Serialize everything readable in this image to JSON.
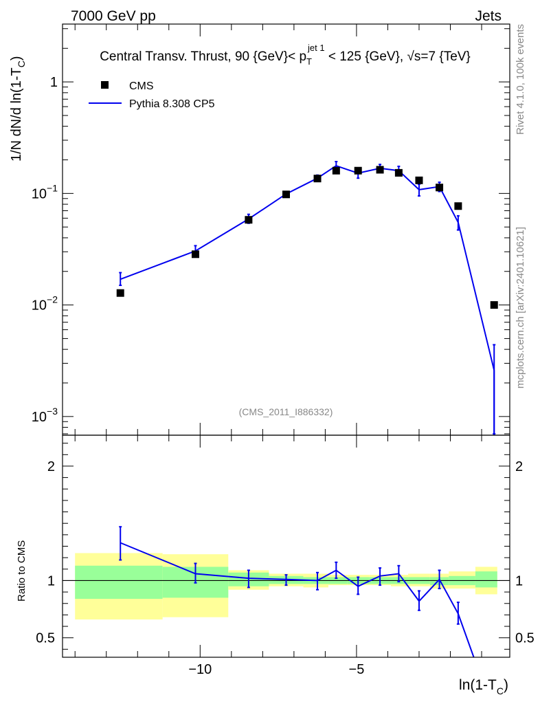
{
  "header": {
    "left": "7000 GeV pp",
    "right": "Jets",
    "side_top": "Rivet 4.1.0,  100k events",
    "side_bottom": "mcplots.cern.ch [arXiv:2401.10621]",
    "watermark": "(CMS_2011_I886332)"
  },
  "colors": {
    "data": "#000000",
    "mc": "#0000ee",
    "band_inner": "#99ff99",
    "band_outer": "#ffff99"
  },
  "chart_data": [
    {
      "type": "scatter",
      "title": "Central Transv. Thrust, 90 {GeV}< p_T^{jet 1} < 125 {GeV}, √s=7 {TeV}",
      "title_parts": {
        "pre": "Central Transv. Thrust, 90 {GeV}< p",
        "sub": "T",
        "sup": "jet 1",
        "mid": " < 125 {GeV}, ",
        "sqrt": "√s",
        "post": "=7 {TeV}"
      },
      "ylabel": "1/N    dN/d ln(1-T_C)",
      "ylabel_parts": {
        "pre": "1/N    dN/d ln(1-T",
        "sub": "C",
        "post": ")"
      },
      "xlabel": "",
      "yscale": "log",
      "xlim": [
        -14.4,
        -0.1
      ],
      "ylim": [
        0.00068,
        3.3
      ],
      "yticks": [
        0.001,
        0.01,
        0.1,
        1
      ],
      "ytick_labels": [
        [
          "10",
          "−3"
        ],
        [
          "10",
          "−2"
        ],
        [
          "10",
          "−1"
        ],
        [
          "1",
          ""
        ]
      ],
      "legend": {
        "location": "top-left",
        "entries": [
          "CMS",
          "Pythia 8.308 CP5"
        ]
      },
      "series": [
        {
          "name": "CMS",
          "kind": "markers",
          "x": [
            -12.55,
            -10.15,
            -8.45,
            -7.25,
            -6.25,
            -5.65,
            -4.95,
            -4.25,
            -3.65,
            -3.0,
            -2.35,
            -1.75,
            -0.6
          ],
          "y": [
            0.0128,
            0.0285,
            0.058,
            0.098,
            0.136,
            0.16,
            0.16,
            0.163,
            0.153,
            0.131,
            0.113,
            0.077,
            0.01
          ]
        },
        {
          "name": "Pythia 8.308 CP5",
          "kind": "line",
          "x": [
            -12.55,
            -10.15,
            -8.45,
            -7.25,
            -6.25,
            -5.65,
            -4.95,
            -4.25,
            -3.65,
            -3.0,
            -2.35,
            -1.75,
            -0.6
          ],
          "y": [
            0.017,
            0.0305,
            0.059,
            0.099,
            0.137,
            0.177,
            0.152,
            0.168,
            0.16,
            0.108,
            0.115,
            0.055,
            0.0026
          ],
          "yerr_low": [
            0.015,
            0.027,
            0.054,
            0.094,
            0.129,
            0.162,
            0.137,
            0.155,
            0.146,
            0.095,
            0.104,
            0.047,
            0.0007
          ],
          "yerr_high": [
            0.0195,
            0.034,
            0.065,
            0.104,
            0.146,
            0.193,
            0.168,
            0.182,
            0.175,
            0.121,
            0.126,
            0.063,
            0.0044
          ]
        }
      ]
    },
    {
      "type": "line",
      "title": "",
      "ylabel": "Ratio to CMS",
      "xlabel": "ln(1-T_C)",
      "xlabel_parts": {
        "pre": "ln(1-T",
        "sub": "C",
        "post": ")"
      },
      "xlim": [
        -14.4,
        -0.1
      ],
      "ylim": [
        0.33,
        2.27
      ],
      "xticks": [
        -10,
        -5
      ],
      "xtick_labels": [
        "−10",
        "−5"
      ],
      "yticks": [
        0.5,
        1,
        2
      ],
      "ytick_labels": [
        "0.5",
        "1",
        "2"
      ],
      "reference_line": 1,
      "bands": [
        {
          "x0": -14.0,
          "x1": -11.2,
          "inner": [
            0.84,
            1.13
          ],
          "outer": [
            0.66,
            1.24
          ]
        },
        {
          "x0": -11.2,
          "x1": -9.1,
          "inner": [
            0.85,
            1.12
          ],
          "outer": [
            0.68,
            1.23
          ]
        },
        {
          "x0": -9.1,
          "x1": -7.8,
          "inner": [
            0.95,
            1.07
          ],
          "outer": [
            0.92,
            1.09
          ]
        },
        {
          "x0": -7.8,
          "x1": -6.7,
          "inner": [
            0.97,
            1.04
          ],
          "outer": [
            0.95,
            1.06
          ]
        },
        {
          "x0": -6.7,
          "x1": -5.9,
          "inner": [
            0.97,
            1.03
          ],
          "outer": [
            0.94,
            1.06
          ]
        },
        {
          "x0": -5.9,
          "x1": -5.3,
          "inner": [
            0.97,
            1.03
          ],
          "outer": [
            0.96,
            1.05
          ]
        },
        {
          "x0": -5.3,
          "x1": -4.6,
          "inner": [
            0.97,
            1.03
          ],
          "outer": [
            0.96,
            1.05
          ]
        },
        {
          "x0": -4.6,
          "x1": -3.9,
          "inner": [
            0.97,
            1.03
          ],
          "outer": [
            0.96,
            1.05
          ]
        },
        {
          "x0": -3.9,
          "x1": -3.35,
          "inner": [
            0.97,
            1.03
          ],
          "outer": [
            0.95,
            1.05
          ]
        },
        {
          "x0": -3.35,
          "x1": -2.65,
          "inner": [
            0.97,
            1.03
          ],
          "outer": [
            0.95,
            1.06
          ]
        },
        {
          "x0": -2.65,
          "x1": -2.05,
          "inner": [
            0.96,
            1.03
          ],
          "outer": [
            0.93,
            1.06
          ]
        },
        {
          "x0": -2.05,
          "x1": -1.2,
          "inner": [
            0.96,
            1.04
          ],
          "outer": [
            0.93,
            1.08
          ]
        },
        {
          "x0": -1.2,
          "x1": -0.5,
          "inner": [
            0.94,
            1.08
          ],
          "outer": [
            0.88,
            1.12
          ]
        }
      ],
      "series": [
        {
          "name": "Pythia 8.308 CP5",
          "x": [
            -12.55,
            -10.15,
            -8.45,
            -7.25,
            -6.25,
            -5.65,
            -4.95,
            -4.25,
            -3.65,
            -3.0,
            -2.35,
            -1.75,
            -1.25
          ],
          "y": [
            1.33,
            1.06,
            1.02,
            1.01,
            1.0,
            1.09,
            0.95,
            1.04,
            1.06,
            0.82,
            1.01,
            0.71,
            0.33
          ],
          "yerr_low": [
            1.18,
            0.98,
            0.94,
            0.96,
            0.92,
            1.02,
            0.88,
            0.96,
            0.99,
            0.74,
            0.93,
            0.62,
            null
          ],
          "yerr_high": [
            1.47,
            1.15,
            1.09,
            1.05,
            1.07,
            1.16,
            1.03,
            1.11,
            1.13,
            0.91,
            1.09,
            0.81,
            null
          ]
        }
      ]
    }
  ]
}
